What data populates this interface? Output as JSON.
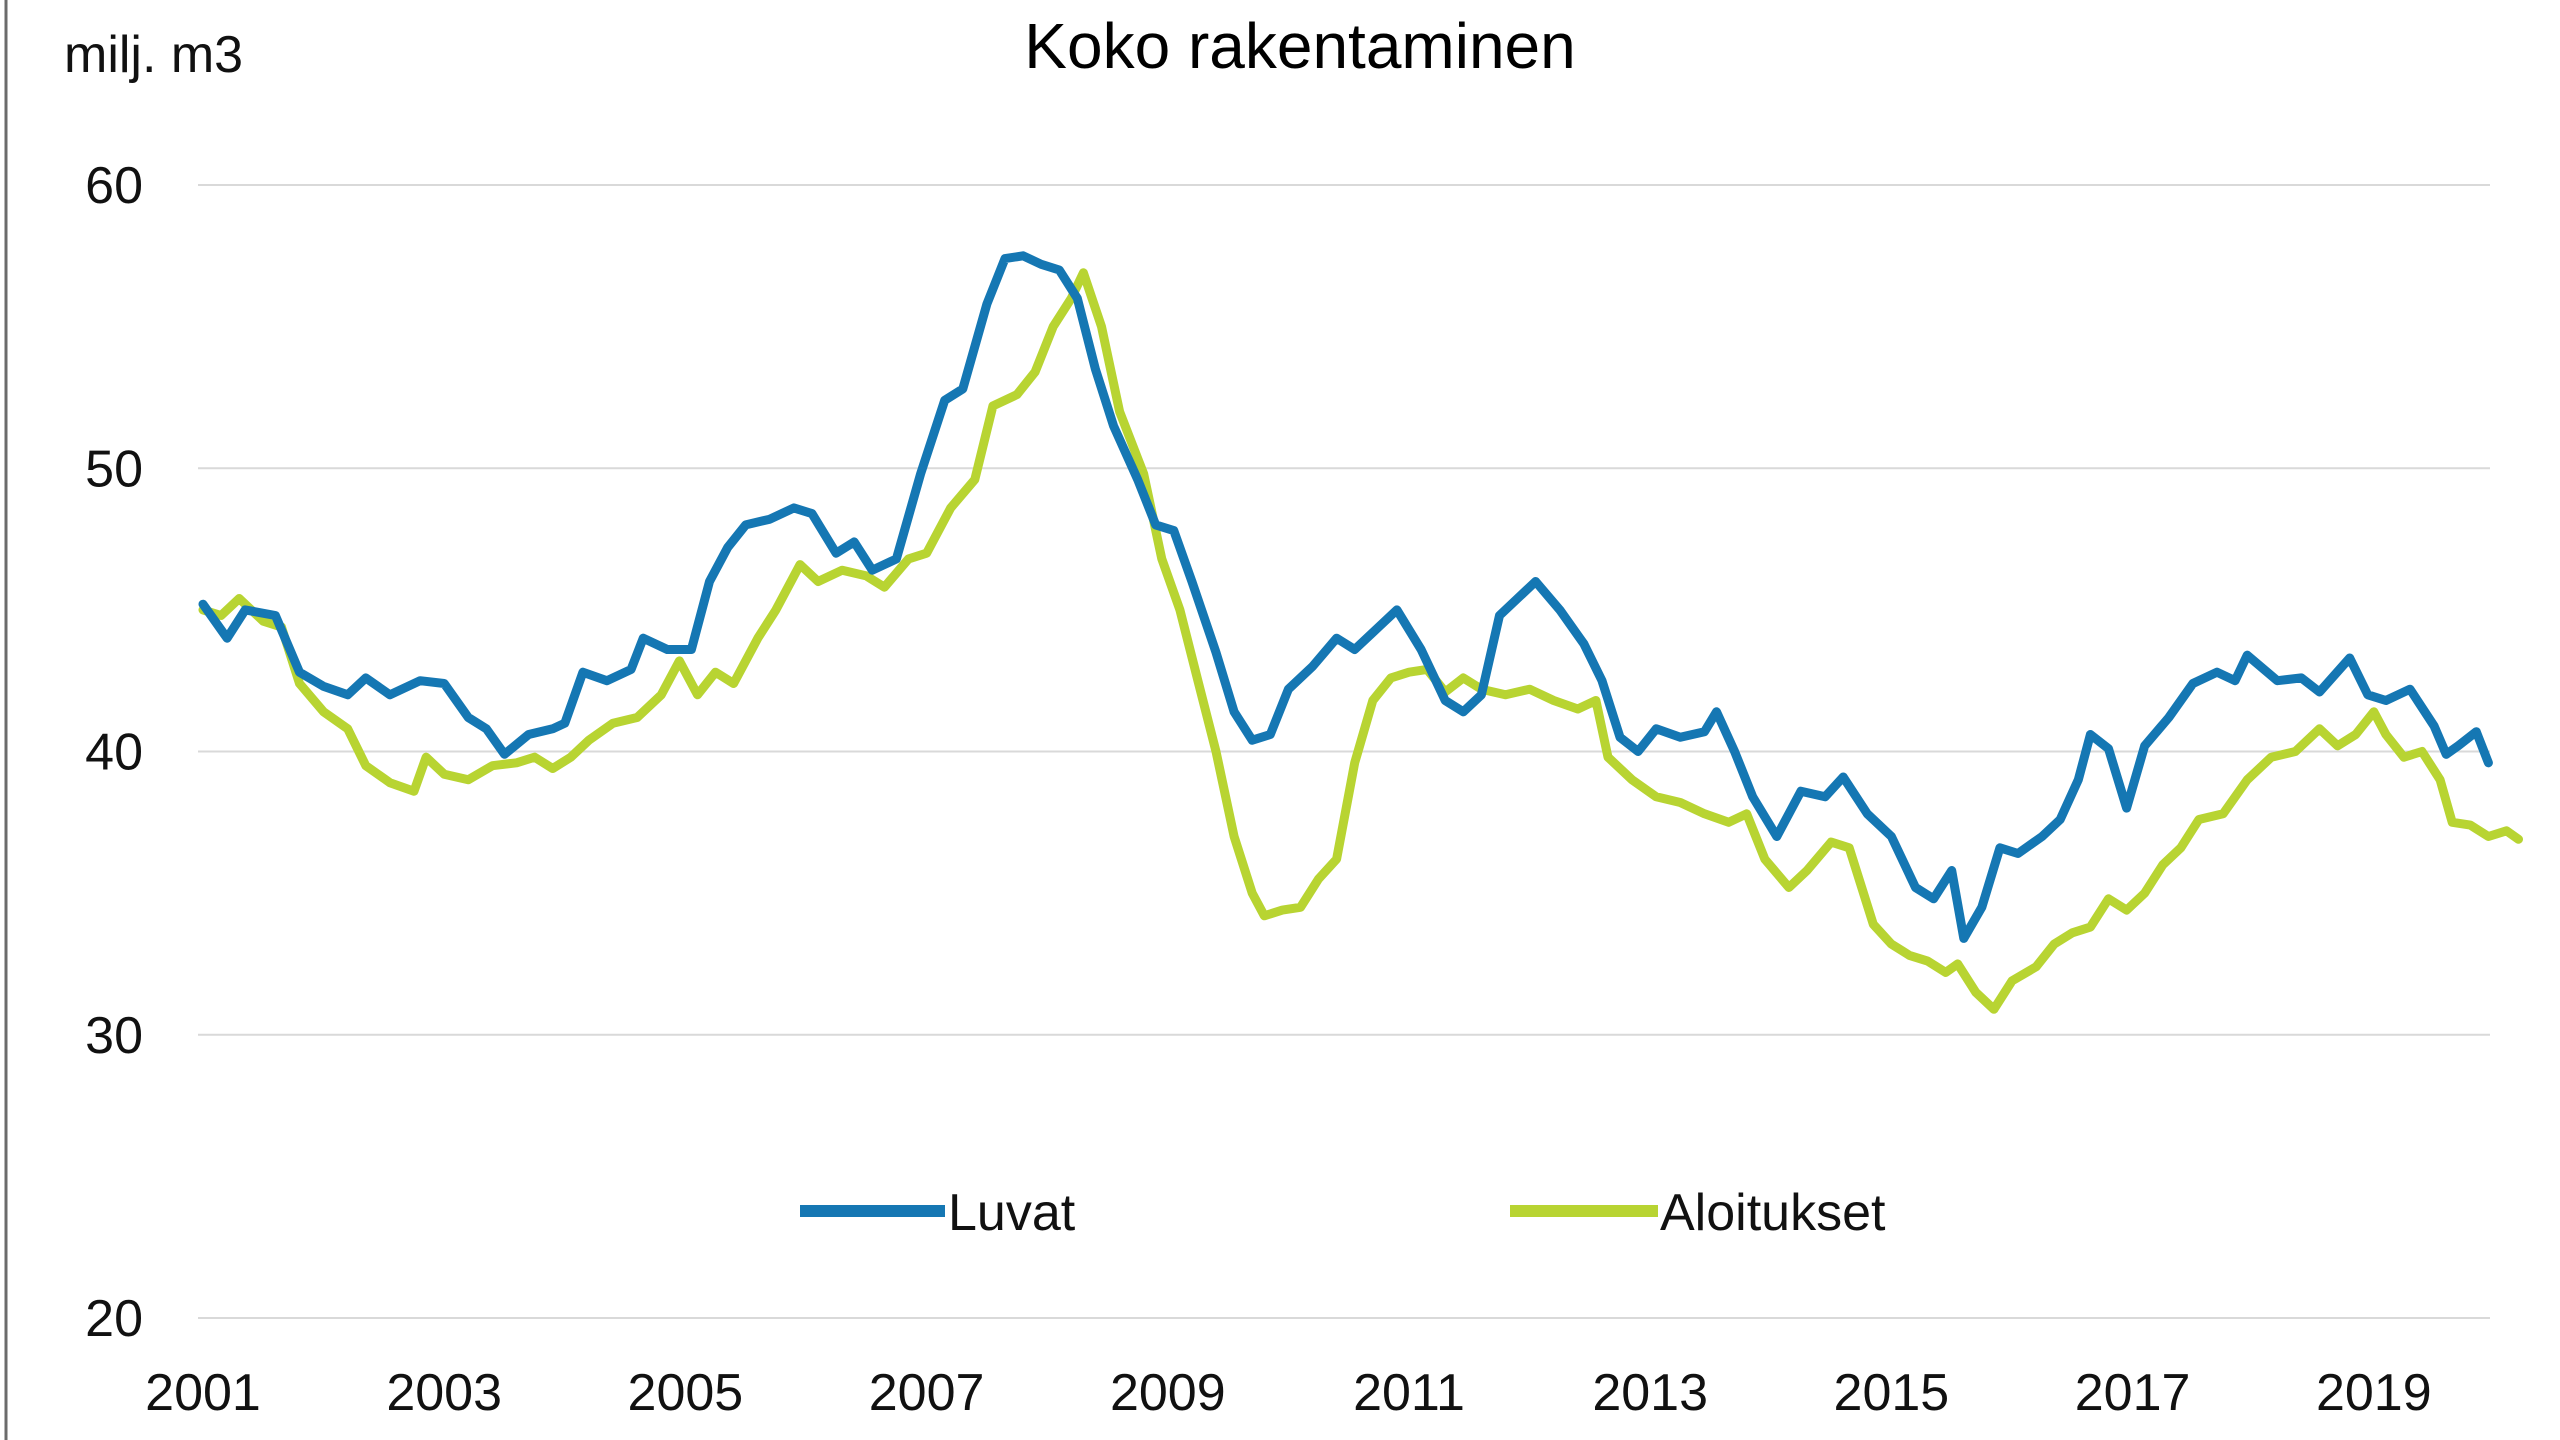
{
  "chart_data": {
    "type": "line",
    "title": "Koko rakentaminen",
    "ylabel": "milj. m3",
    "xlabel": "",
    "ylim": [
      20,
      60
    ],
    "xlim": [
      2001.0,
      2019.9
    ],
    "yticks": [
      "20",
      "30",
      "40",
      "50",
      "60"
    ],
    "xticks": [
      "2001",
      "2003",
      "2005",
      "2007",
      "2009",
      "2011",
      "2013",
      "2015",
      "2017",
      "2019"
    ],
    "grid": "horizontal",
    "legend_position": "bottom-center",
    "series": [
      {
        "name": "Luvat",
        "color": "#1577b3",
        "points": [
          [
            2001.0,
            45.2
          ],
          [
            2001.2,
            44.0
          ],
          [
            2001.35,
            45.0
          ],
          [
            2001.6,
            44.8
          ],
          [
            2001.8,
            42.8
          ],
          [
            2002.0,
            42.3
          ],
          [
            2002.2,
            42.0
          ],
          [
            2002.35,
            42.6
          ],
          [
            2002.55,
            42.0
          ],
          [
            2002.8,
            42.5
          ],
          [
            2003.0,
            42.4
          ],
          [
            2003.2,
            41.2
          ],
          [
            2003.35,
            40.8
          ],
          [
            2003.5,
            39.9
          ],
          [
            2003.7,
            40.6
          ],
          [
            2003.9,
            40.8
          ],
          [
            2004.0,
            41.0
          ],
          [
            2004.15,
            42.8
          ],
          [
            2004.35,
            42.5
          ],
          [
            2004.55,
            42.9
          ],
          [
            2004.65,
            44.0
          ],
          [
            2004.85,
            43.6
          ],
          [
            2005.05,
            43.6
          ],
          [
            2005.2,
            46.0
          ],
          [
            2005.35,
            47.2
          ],
          [
            2005.5,
            48.0
          ],
          [
            2005.7,
            48.2
          ],
          [
            2005.9,
            48.6
          ],
          [
            2006.05,
            48.4
          ],
          [
            2006.25,
            47.0
          ],
          [
            2006.4,
            47.4
          ],
          [
            2006.55,
            46.4
          ],
          [
            2006.75,
            46.8
          ],
          [
            2006.95,
            49.8
          ],
          [
            2007.15,
            52.4
          ],
          [
            2007.3,
            52.8
          ],
          [
            2007.5,
            55.8
          ],
          [
            2007.65,
            57.4
          ],
          [
            2007.8,
            57.5
          ],
          [
            2007.95,
            57.2
          ],
          [
            2008.1,
            57.0
          ],
          [
            2008.25,
            56.0
          ],
          [
            2008.4,
            53.5
          ],
          [
            2008.55,
            51.5
          ],
          [
            2008.75,
            49.6
          ],
          [
            2008.9,
            48.0
          ],
          [
            2009.05,
            47.8
          ],
          [
            2009.2,
            46.0
          ],
          [
            2009.4,
            43.5
          ],
          [
            2009.55,
            41.4
          ],
          [
            2009.7,
            40.4
          ],
          [
            2009.85,
            40.6
          ],
          [
            2010.0,
            42.2
          ],
          [
            2010.2,
            43.0
          ],
          [
            2010.4,
            44.0
          ],
          [
            2010.55,
            43.6
          ],
          [
            2010.75,
            44.4
          ],
          [
            2010.9,
            45.0
          ],
          [
            2011.1,
            43.6
          ],
          [
            2011.3,
            41.8
          ],
          [
            2011.45,
            41.4
          ],
          [
            2011.6,
            42.0
          ],
          [
            2011.75,
            44.8
          ],
          [
            2011.9,
            45.4
          ],
          [
            2012.05,
            46.0
          ],
          [
            2012.25,
            45.0
          ],
          [
            2012.45,
            43.8
          ],
          [
            2012.6,
            42.5
          ],
          [
            2012.75,
            40.5
          ],
          [
            2012.9,
            40.0
          ],
          [
            2013.05,
            40.8
          ],
          [
            2013.25,
            40.5
          ],
          [
            2013.45,
            40.7
          ],
          [
            2013.55,
            41.4
          ],
          [
            2013.7,
            40.0
          ],
          [
            2013.85,
            38.4
          ],
          [
            2014.05,
            37.0
          ],
          [
            2014.25,
            38.6
          ],
          [
            2014.45,
            38.4
          ],
          [
            2014.6,
            39.1
          ],
          [
            2014.8,
            37.8
          ],
          [
            2015.0,
            37.0
          ],
          [
            2015.2,
            35.2
          ],
          [
            2015.35,
            34.8
          ],
          [
            2015.5,
            35.8
          ],
          [
            2015.6,
            33.4
          ],
          [
            2015.75,
            34.5
          ],
          [
            2015.9,
            36.6
          ],
          [
            2016.05,
            36.4
          ],
          [
            2016.25,
            37.0
          ],
          [
            2016.4,
            37.6
          ],
          [
            2016.55,
            39.0
          ],
          [
            2016.65,
            40.6
          ],
          [
            2016.8,
            40.1
          ],
          [
            2016.95,
            38.0
          ],
          [
            2017.1,
            40.2
          ],
          [
            2017.3,
            41.2
          ],
          [
            2017.5,
            42.4
          ],
          [
            2017.7,
            42.8
          ],
          [
            2017.85,
            42.5
          ],
          [
            2017.95,
            43.4
          ],
          [
            2018.2,
            42.5
          ],
          [
            2018.4,
            42.6
          ],
          [
            2018.55,
            42.1
          ],
          [
            2018.8,
            43.3
          ],
          [
            2018.95,
            42.0
          ],
          [
            2019.1,
            41.8
          ],
          [
            2019.3,
            42.2
          ],
          [
            2019.5,
            40.9
          ],
          [
            2019.6,
            39.9
          ],
          [
            2019.7,
            40.2
          ],
          [
            2019.85,
            40.7
          ],
          [
            2019.95,
            39.6
          ]
        ]
      },
      {
        "name": "Aloitukset",
        "color": "#b8d432",
        "points": [
          [
            2001.0,
            45.0
          ],
          [
            2001.15,
            44.8
          ],
          [
            2001.3,
            45.4
          ],
          [
            2001.5,
            44.6
          ],
          [
            2001.65,
            44.4
          ],
          [
            2001.8,
            42.4
          ],
          [
            2002.0,
            41.4
          ],
          [
            2002.2,
            40.8
          ],
          [
            2002.35,
            39.5
          ],
          [
            2002.55,
            38.9
          ],
          [
            2002.75,
            38.6
          ],
          [
            2002.85,
            39.8
          ],
          [
            2003.0,
            39.2
          ],
          [
            2003.2,
            39.0
          ],
          [
            2003.4,
            39.5
          ],
          [
            2003.6,
            39.6
          ],
          [
            2003.75,
            39.8
          ],
          [
            2003.9,
            39.4
          ],
          [
            2004.05,
            39.8
          ],
          [
            2004.2,
            40.4
          ],
          [
            2004.4,
            41.0
          ],
          [
            2004.6,
            41.2
          ],
          [
            2004.8,
            42.0
          ],
          [
            2004.95,
            43.2
          ],
          [
            2005.1,
            42.0
          ],
          [
            2005.25,
            42.8
          ],
          [
            2005.4,
            42.4
          ],
          [
            2005.6,
            44.0
          ],
          [
            2005.75,
            45.0
          ],
          [
            2005.95,
            46.6
          ],
          [
            2006.1,
            46.0
          ],
          [
            2006.3,
            46.4
          ],
          [
            2006.5,
            46.2
          ],
          [
            2006.65,
            45.8
          ],
          [
            2006.85,
            46.8
          ],
          [
            2007.0,
            47.0
          ],
          [
            2007.2,
            48.6
          ],
          [
            2007.4,
            49.6
          ],
          [
            2007.55,
            52.2
          ],
          [
            2007.75,
            52.6
          ],
          [
            2007.9,
            53.4
          ],
          [
            2008.05,
            55.0
          ],
          [
            2008.2,
            56.0
          ],
          [
            2008.3,
            56.9
          ],
          [
            2008.45,
            55.0
          ],
          [
            2008.6,
            52.0
          ],
          [
            2008.8,
            49.8
          ],
          [
            2008.95,
            46.8
          ],
          [
            2009.1,
            45.0
          ],
          [
            2009.25,
            42.5
          ],
          [
            2009.4,
            40.0
          ],
          [
            2009.55,
            37.0
          ],
          [
            2009.7,
            35.0
          ],
          [
            2009.8,
            34.2
          ],
          [
            2009.95,
            34.4
          ],
          [
            2010.1,
            34.5
          ],
          [
            2010.25,
            35.5
          ],
          [
            2010.4,
            36.2
          ],
          [
            2010.55,
            39.6
          ],
          [
            2010.7,
            41.8
          ],
          [
            2010.85,
            42.6
          ],
          [
            2011.0,
            42.8
          ],
          [
            2011.15,
            42.9
          ],
          [
            2011.3,
            42.1
          ],
          [
            2011.45,
            42.6
          ],
          [
            2011.6,
            42.2
          ],
          [
            2011.8,
            42.0
          ],
          [
            2012.0,
            42.2
          ],
          [
            2012.2,
            41.8
          ],
          [
            2012.4,
            41.5
          ],
          [
            2012.55,
            41.8
          ],
          [
            2012.65,
            39.8
          ],
          [
            2012.85,
            39.0
          ],
          [
            2013.05,
            38.4
          ],
          [
            2013.25,
            38.2
          ],
          [
            2013.45,
            37.8
          ],
          [
            2013.65,
            37.5
          ],
          [
            2013.8,
            37.8
          ],
          [
            2013.95,
            36.2
          ],
          [
            2014.15,
            35.2
          ],
          [
            2014.3,
            35.8
          ],
          [
            2014.5,
            36.8
          ],
          [
            2014.65,
            36.6
          ],
          [
            2014.85,
            33.9
          ],
          [
            2015.0,
            33.2
          ],
          [
            2015.15,
            32.8
          ],
          [
            2015.3,
            32.6
          ],
          [
            2015.45,
            32.2
          ],
          [
            2015.55,
            32.5
          ],
          [
            2015.7,
            31.5
          ],
          [
            2015.85,
            30.9
          ],
          [
            2016.0,
            31.9
          ],
          [
            2016.2,
            32.4
          ],
          [
            2016.35,
            33.2
          ],
          [
            2016.5,
            33.6
          ],
          [
            2016.65,
            33.8
          ],
          [
            2016.8,
            34.8
          ],
          [
            2016.95,
            34.4
          ],
          [
            2017.1,
            35.0
          ],
          [
            2017.25,
            36.0
          ],
          [
            2017.4,
            36.6
          ],
          [
            2017.55,
            37.6
          ],
          [
            2017.75,
            37.8
          ],
          [
            2017.95,
            39.0
          ],
          [
            2018.15,
            39.8
          ],
          [
            2018.35,
            40.0
          ],
          [
            2018.55,
            40.8
          ],
          [
            2018.7,
            40.2
          ],
          [
            2018.85,
            40.6
          ],
          [
            2019.0,
            41.4
          ],
          [
            2019.1,
            40.6
          ],
          [
            2019.25,
            39.8
          ],
          [
            2019.4,
            40.0
          ],
          [
            2019.55,
            39.0
          ],
          [
            2019.65,
            37.5
          ],
          [
            2019.8,
            37.4
          ],
          [
            2019.95,
            37.0
          ],
          [
            2020.1,
            37.2
          ],
          [
            2020.2,
            36.9
          ]
        ]
      }
    ]
  }
}
